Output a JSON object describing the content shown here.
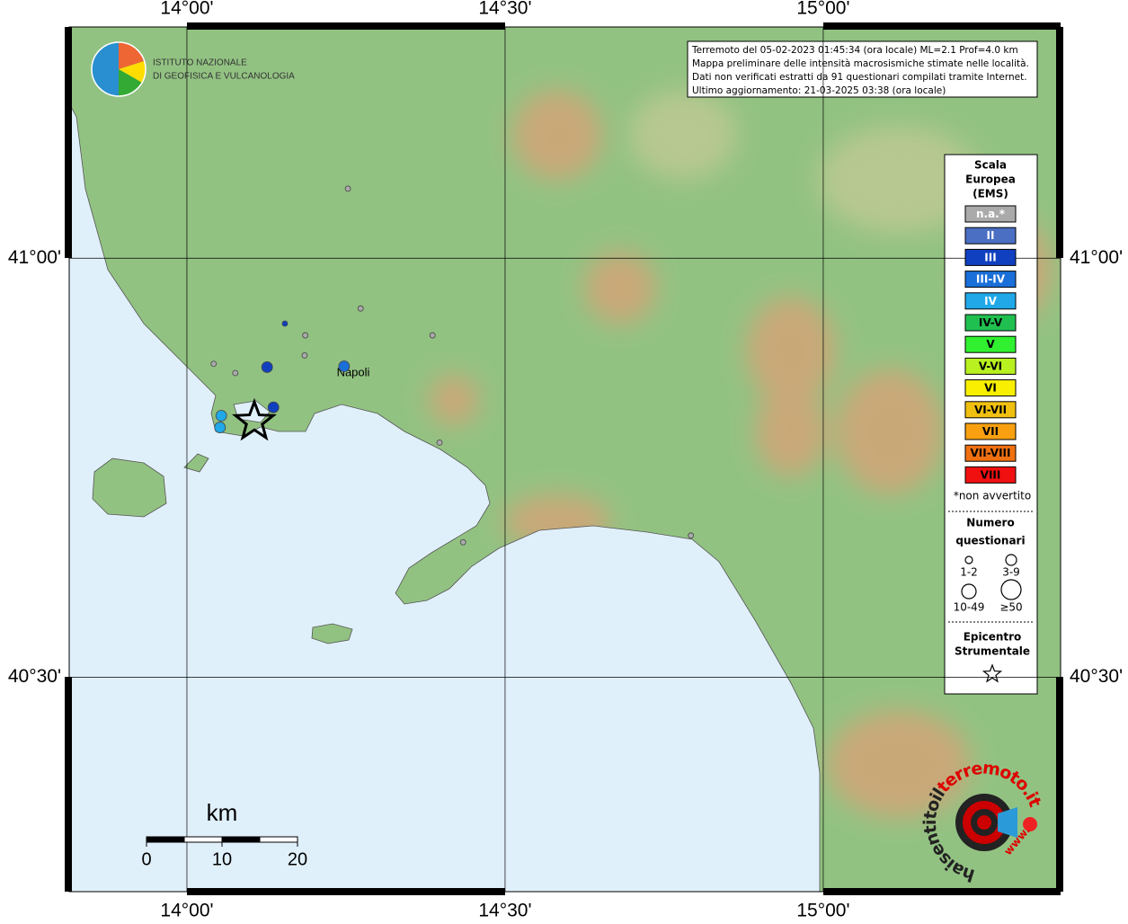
{
  "map": {
    "xlim": [
      13.815,
      15.373
    ],
    "ylim": [
      40.244,
      41.276
    ],
    "xticks": [
      {
        "value": 14,
        "label": "14°00'"
      },
      {
        "value": 14.5,
        "label": "14°30'"
      },
      {
        "value": 15,
        "label": "15°00'"
      }
    ],
    "yticks": [
      {
        "value": 41,
        "label": "41°00'"
      },
      {
        "value": 40.5,
        "label": "40°30'"
      }
    ]
  },
  "logo": [
    "ISTITUTO NAZIONALE",
    "DI GEOFISICA E VULCANOLOGIA"
  ],
  "info": [
    "Terremoto del 05-02-2023 01:45:34 (ora locale) ML=2.1 Prof=4.0 km",
    "Mappa preliminare delle intensità macrosismiche stimate nelle località.",
    "Dati non verificati estratti da 91 questionari compilati tramite Internet.",
    "Ultimo aggiornamento: 21-03-2025 03:38 (ora locale)"
  ],
  "place": "Napoli",
  "legend": {
    "title": [
      "Scala",
      "Europea",
      "(EMS)"
    ],
    "classes": [
      {
        "label": "n.a.*",
        "color": "#aaaaaa"
      },
      {
        "label": "II",
        "color": "#4a6fc3"
      },
      {
        "label": "III",
        "color": "#1040c0"
      },
      {
        "label": "III-IV",
        "color": "#1a6fd8"
      },
      {
        "label": "IV",
        "color": "#20a8e8"
      },
      {
        "label": "IV-V",
        "color": "#20c050"
      },
      {
        "label": "V",
        "color": "#30f030"
      },
      {
        "label": "V-VI",
        "color": "#b8f020"
      },
      {
        "label": "VI",
        "color": "#f8f000"
      },
      {
        "label": "VI-VII",
        "color": "#f0c010"
      },
      {
        "label": "VII",
        "color": "#f8a010"
      },
      {
        "label": "VII-VIII",
        "color": "#f07010"
      },
      {
        "label": "VIII",
        "color": "#f01010"
      }
    ],
    "note": "*non avvertito",
    "size_title": [
      "Numero",
      "questionari"
    ],
    "sizes": [
      "1-2",
      "3-9",
      "10-49",
      "≥50"
    ],
    "epicenter_title": [
      "Epicentro",
      "Strumentale"
    ]
  },
  "points": [
    {
      "lon": 14.253,
      "lat": 41.083,
      "class": 0,
      "size": 0
    },
    {
      "lon": 14.273,
      "lat": 40.94,
      "class": 0,
      "size": 0
    },
    {
      "lon": 14.154,
      "lat": 40.922,
      "class": 2,
      "size": 0
    },
    {
      "lon": 14.186,
      "lat": 40.908,
      "class": 0,
      "size": 0
    },
    {
      "lon": 14.386,
      "lat": 40.908,
      "class": 0,
      "size": 0
    },
    {
      "lon": 14.042,
      "lat": 40.874,
      "class": 0,
      "size": 0
    },
    {
      "lon": 14.076,
      "lat": 40.863,
      "class": 0,
      "size": 0
    },
    {
      "lon": 14.126,
      "lat": 40.87,
      "class": 2,
      "size": 1
    },
    {
      "lon": 14.185,
      "lat": 40.884,
      "class": 0,
      "size": 0
    },
    {
      "lon": 14.247,
      "lat": 40.871,
      "class": 3,
      "size": 1
    },
    {
      "lon": 14.136,
      "lat": 40.822,
      "class": 2,
      "size": 1
    },
    {
      "lon": 14.054,
      "lat": 40.812,
      "class": 4,
      "size": 1
    },
    {
      "lon": 14.052,
      "lat": 40.798,
      "class": 4,
      "size": 1
    },
    {
      "lon": 14.397,
      "lat": 40.78,
      "class": 0,
      "size": 0
    },
    {
      "lon": 14.434,
      "lat": 40.661,
      "class": 0,
      "size": 0
    },
    {
      "lon": 14.792,
      "lat": 40.669,
      "class": 0,
      "size": 0
    }
  ],
  "epicenter": {
    "lon": 14.106,
    "lat": 40.805
  },
  "scale": {
    "title": "km",
    "ticks": [
      0,
      10,
      20
    ]
  },
  "brand": {
    "a": "haisentitoil",
    "b": "terremoto.it",
    "prefix": "www."
  }
}
